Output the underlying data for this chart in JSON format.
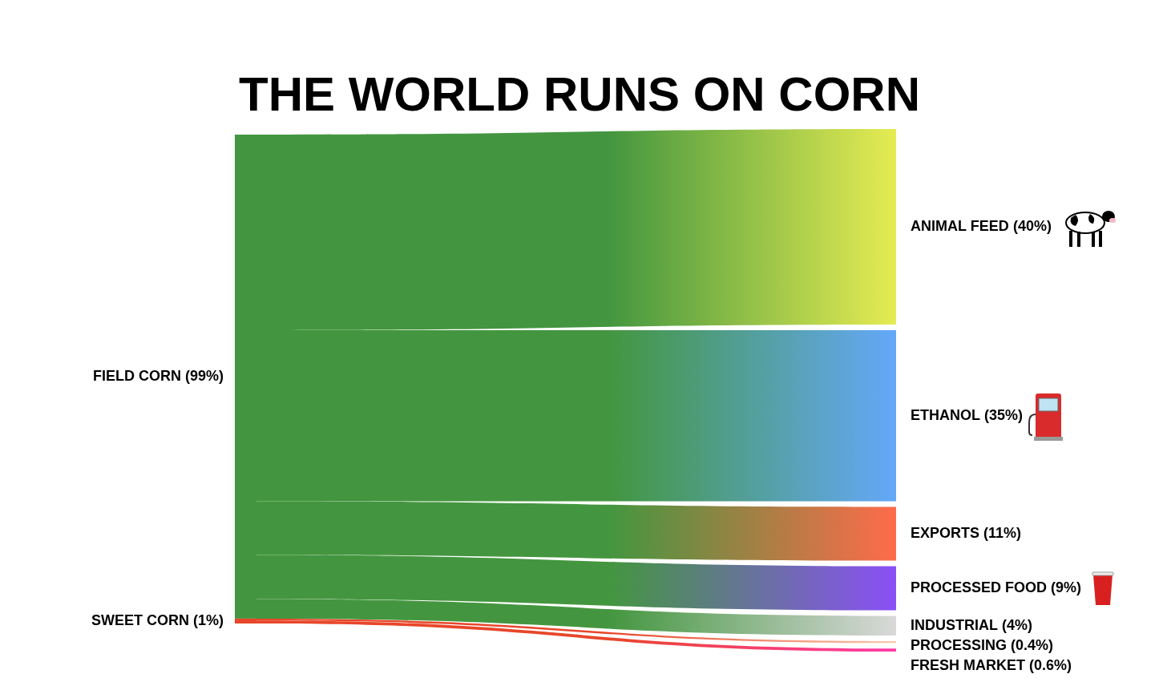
{
  "chart_data": {
    "type": "other",
    "title": "THE WORLD RUNS ON CORN",
    "categories": [
      "FIELD CORN",
      "SWEET CORN",
      "ANIMAL FEED",
      "ETHANOL",
      "EXPORTS",
      "PROCESSED FOOD",
      "INDUSTRIAL",
      "PROCESSING",
      "FRESH MARKET"
    ],
    "series": [
      {
        "values": [
          99,
          1,
          null,
          null,
          null,
          null,
          null,
          null,
          null
        ],
        "value_labels": [
          "(99%)",
          "(1%)",
          null,
          null,
          null,
          null,
          null,
          null,
          null
        ],
        "colors": [
          "#43963f",
          "#e8462a",
          null,
          null,
          null,
          null,
          null,
          null,
          null
        ]
      },
      {
        "values": [
          null,
          null,
          40,
          35,
          11,
          9,
          4,
          0.4,
          0.6
        ],
        "value_labels": [
          null,
          null,
          "(40%)",
          "(35%)",
          "(11%)",
          "(9%)",
          "(4%)",
          "(0.4%)",
          "(0.6%)"
        ],
        "colors": [
          null,
          null,
          "#e6ec52",
          "#64a8f9",
          "#ff6b4a",
          "#8b4ff7",
          "#d9d9d9",
          "#f8c9b0",
          "#ff3aa8"
        ]
      }
    ]
  }
}
